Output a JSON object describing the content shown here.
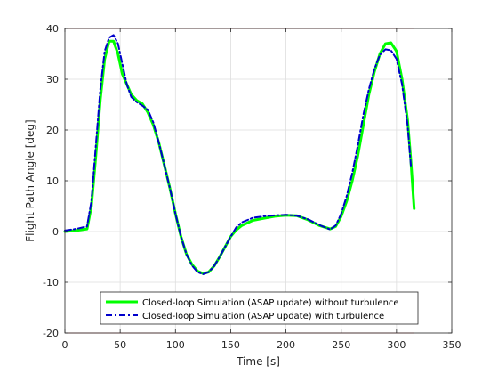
{
  "chart_data": {
    "type": "line",
    "title": "",
    "xlabel": "Time [s]",
    "ylabel": "Flight Path Angle [deg]",
    "xlim": [
      0,
      350
    ],
    "ylim": [
      -20,
      40
    ],
    "x_ticks": [
      0,
      50,
      100,
      150,
      200,
      250,
      300,
      350
    ],
    "y_ticks": [
      -20,
      -10,
      0,
      10,
      20,
      30,
      40
    ],
    "grid": true,
    "legend_position": "bottom-center",
    "limit_lines": [
      {
        "y": 40,
        "color": "#e07070"
      },
      {
        "y": -20,
        "color": "#e07070"
      }
    ],
    "series": [
      {
        "name": "Closed-loop Simulation (ASAP update) without turbulence",
        "color": "#00ff00",
        "style": "solid",
        "x": [
          0,
          10,
          20,
          24,
          28,
          32,
          36,
          40,
          44,
          48,
          52,
          56,
          60,
          65,
          70,
          75,
          80,
          85,
          90,
          95,
          100,
          105,
          110,
          115,
          120,
          125,
          130,
          135,
          140,
          145,
          150,
          155,
          160,
          170,
          180,
          190,
          200,
          210,
          220,
          230,
          240,
          245,
          250,
          255,
          260,
          265,
          270,
          275,
          280,
          285,
          290,
          295,
          300,
          305,
          310,
          313,
          316
        ],
        "y": [
          0,
          0.2,
          0.5,
          5,
          15,
          26,
          34,
          37.5,
          37.5,
          35,
          31,
          29,
          27,
          25.8,
          25.2,
          23.5,
          21,
          17.5,
          13,
          8.5,
          3.5,
          -1,
          -4.5,
          -6.5,
          -7.8,
          -8.3,
          -8,
          -6.8,
          -5,
          -3,
          -1,
          0.3,
          1.2,
          2.2,
          2.6,
          3,
          3.2,
          3.1,
          2.3,
          1.2,
          0.5,
          1,
          3,
          6,
          10,
          15,
          21,
          27,
          31.5,
          35,
          37,
          37.2,
          35.5,
          30,
          22,
          14,
          4.5
        ]
      },
      {
        "name": "Closed-loop Simulation (ASAP update) with turbulence",
        "color": "#0000cc",
        "style": "dash-dot",
        "x": [
          0,
          10,
          20,
          24,
          28,
          32,
          36,
          40,
          44,
          48,
          52,
          56,
          60,
          65,
          70,
          75,
          80,
          85,
          90,
          95,
          100,
          105,
          110,
          115,
          120,
          125,
          130,
          135,
          140,
          145,
          150,
          155,
          160,
          170,
          180,
          190,
          200,
          210,
          220,
          230,
          240,
          245,
          250,
          255,
          260,
          265,
          270,
          275,
          280,
          285,
          290,
          295,
          300,
          305,
          310,
          313
        ],
        "y": [
          0.2,
          0.5,
          1,
          6,
          17,
          28,
          35.5,
          38.2,
          38.7,
          37,
          33,
          29,
          26.5,
          25.5,
          24.8,
          24,
          21.5,
          17.5,
          13,
          8.5,
          3.5,
          -1,
          -4.5,
          -6.7,
          -8,
          -8.4,
          -8,
          -6.8,
          -5,
          -3,
          -1,
          0.8,
          1.8,
          2.7,
          3,
          3.2,
          3.3,
          3.1,
          2.4,
          1.3,
          0.4,
          1.2,
          3.5,
          7,
          11.5,
          17,
          23,
          28,
          32,
          34.8,
          35.9,
          35.7,
          34,
          29,
          21,
          13
        ]
      }
    ]
  }
}
